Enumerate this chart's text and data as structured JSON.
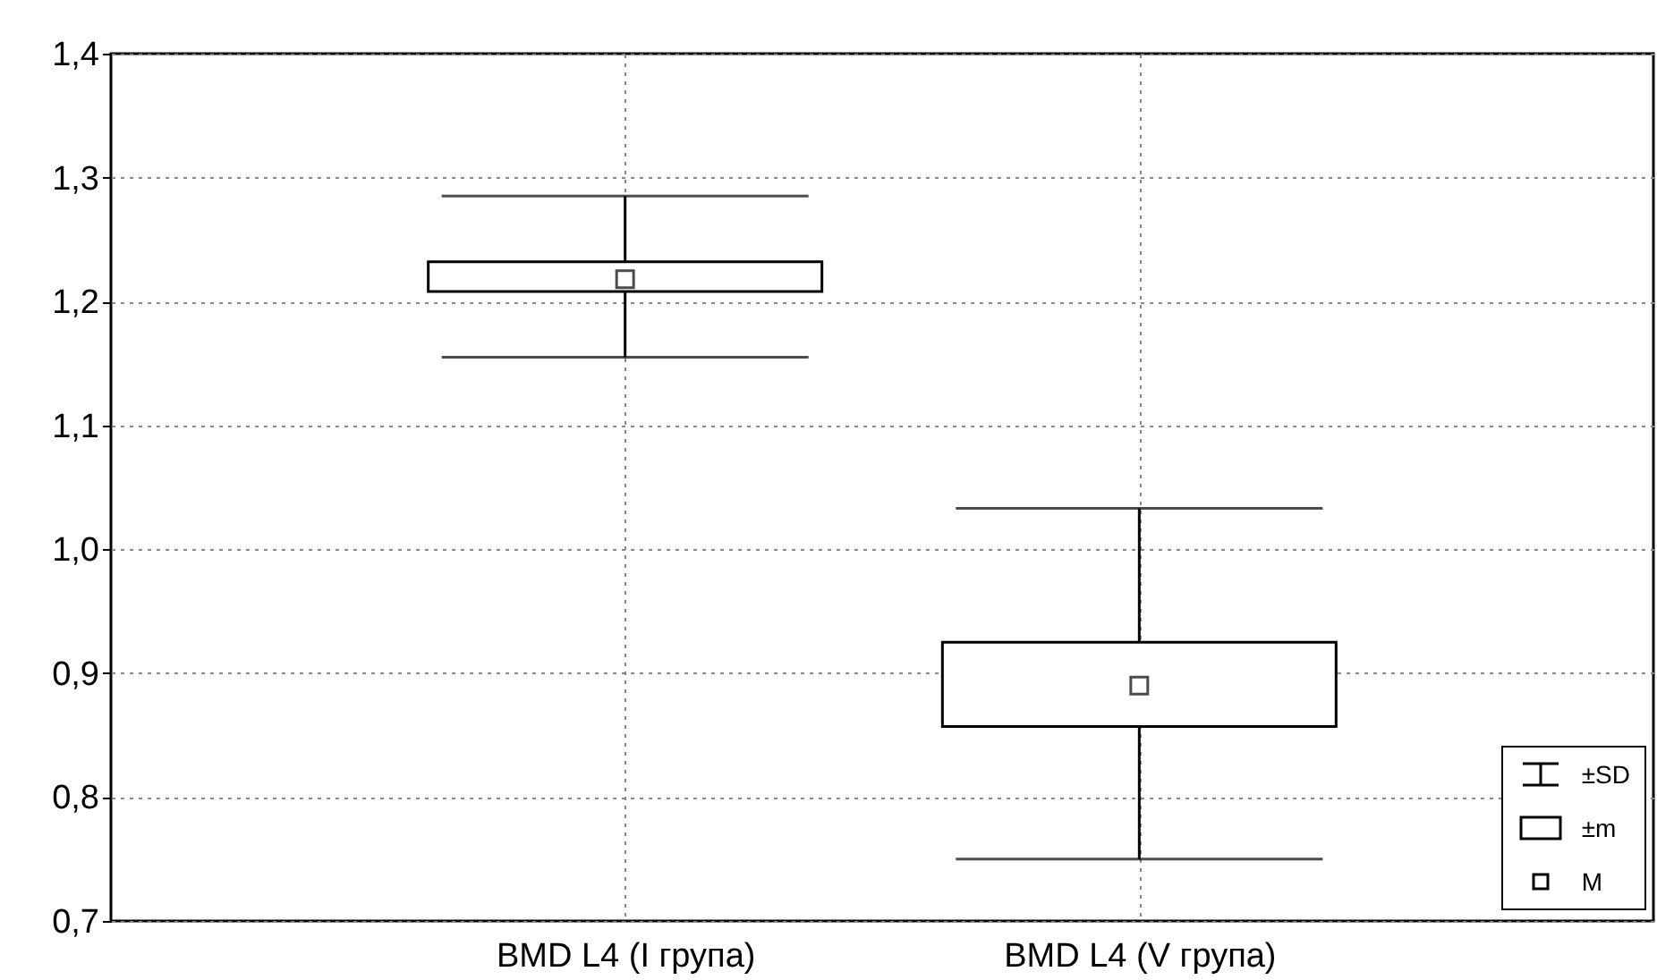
{
  "chart_data": {
    "type": "box",
    "categories": [
      "BMD L4 (I група)",
      "BMD L4 (V група)"
    ],
    "boxes": [
      {
        "low": 1.155,
        "q1": 1.208,
        "median": 1.218,
        "q3": 1.232,
        "high": 1.285
      },
      {
        "low": 0.75,
        "q1": 0.857,
        "median": 0.89,
        "q3": 0.925,
        "high": 1.033
      }
    ],
    "ylim": [
      0.7,
      1.4
    ],
    "yticks": [
      {
        "value": 0.7,
        "label": "0,7"
      },
      {
        "value": 0.8,
        "label": "0,8"
      },
      {
        "value": 0.9,
        "label": "0,9"
      },
      {
        "value": 1.0,
        "label": "1,0"
      },
      {
        "value": 1.1,
        "label": "1,1"
      },
      {
        "value": 1.2,
        "label": "1,2"
      },
      {
        "value": 1.3,
        "label": "1,3"
      },
      {
        "value": 1.4,
        "label": "1,4"
      }
    ],
    "grid": true,
    "marker": "square",
    "annotations": [
      "±SD",
      "±m",
      "M"
    ]
  }
}
